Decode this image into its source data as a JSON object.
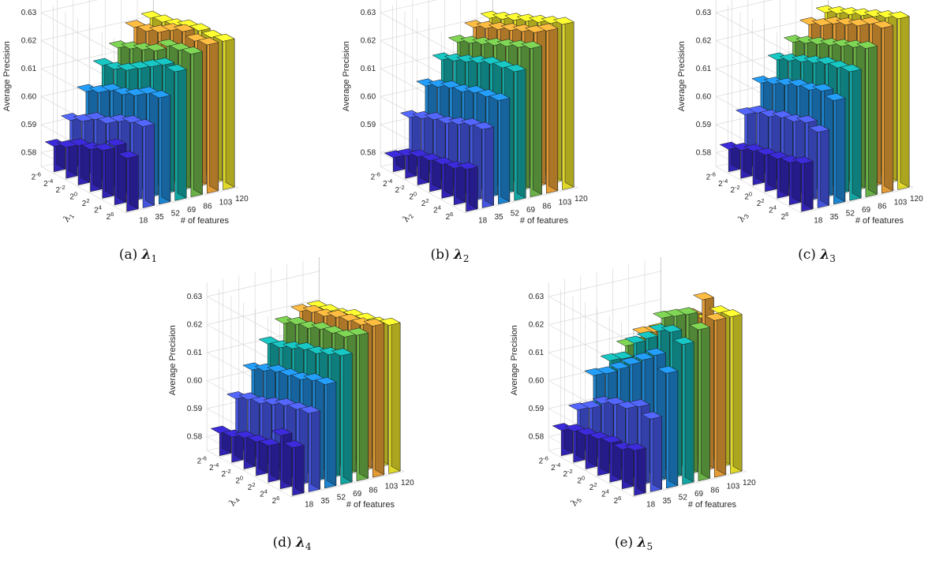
{
  "colors": [
    "#3526c4",
    "#4a5cf2",
    "#1f8ee0",
    "#15b3b0",
    "#72c04c",
    "#f6a93a",
    "#f5ec2c"
  ],
  "chart_data": [
    {
      "type": "bar3d",
      "caption": "(a) λ1",
      "xlabel": "# of features",
      "ylabel_symbol": "λ",
      "ylabel_sub": "1",
      "zlabel": "Average Precision",
      "x_categories": [
        "18",
        "35",
        "52",
        "69",
        "86",
        "103",
        "120"
      ],
      "y_categories": [
        "2-6",
        "2-4",
        "2-2",
        "20",
        "22",
        "24",
        "26"
      ],
      "y_ticks_printed": [
        [
          "2",
          "-6"
        ],
        [
          "2",
          "-4"
        ],
        [
          "2",
          "-2"
        ],
        [
          "2",
          "0"
        ],
        [
          "2",
          "2"
        ],
        [
          "2",
          "4"
        ],
        [
          "2",
          "6"
        ]
      ],
      "z_ticks": [
        "0.58",
        "0.59",
        "0.60",
        "0.61",
        "0.62",
        "0.63"
      ],
      "zlim": [
        0.575,
        0.635
      ],
      "values": [
        [
          0.594,
          0.604,
          0.613,
          0.621,
          0.626,
          0.628,
          0.628
        ],
        [
          0.596,
          0.603,
          0.612,
          0.621,
          0.625,
          0.627,
          0.627
        ],
        [
          0.592,
          0.601,
          0.609,
          0.618,
          0.624,
          0.628,
          0.627
        ],
        [
          0.59,
          0.598,
          0.607,
          0.615,
          0.62,
          0.626,
          0.626
        ],
        [
          0.589,
          0.597,
          0.606,
          0.612,
          0.618,
          0.623,
          0.624
        ],
        [
          0.586,
          0.594,
          0.603,
          0.61,
          0.616,
          0.621,
          0.623
        ],
        [
          0.584,
          0.592,
          0.601,
          0.609,
          0.614,
          0.62,
          0.622
        ]
      ]
    },
    {
      "type": "bar3d",
      "caption": "(b) λ2",
      "xlabel": "# of features",
      "ylabel_symbol": "λ",
      "ylabel_sub": "2",
      "zlabel": "Average Precision",
      "x_categories": [
        "18",
        "35",
        "52",
        "69",
        "86",
        "103",
        "120"
      ],
      "y_categories": [
        "2-6",
        "2-4",
        "2-2",
        "20",
        "22",
        "24",
        "26"
      ],
      "y_ticks_printed": [
        [
          "2",
          "-6"
        ],
        [
          "2",
          "-4"
        ],
        [
          "2",
          "-2"
        ],
        [
          "2",
          "0"
        ],
        [
          "2",
          "2"
        ],
        [
          "2",
          "4"
        ],
        [
          "2",
          "6"
        ]
      ],
      "z_ticks": [
        "0.58",
        "0.59",
        "0.60",
        "0.61",
        "0.62",
        "0.63"
      ],
      "zlim": [
        0.575,
        0.635
      ],
      "values": [
        [
          0.59,
          0.603,
          0.612,
          0.621,
          0.628,
          0.633,
          0.634
        ],
        [
          0.588,
          0.602,
          0.611,
          0.62,
          0.626,
          0.63,
          0.632
        ],
        [
          0.587,
          0.6,
          0.61,
          0.619,
          0.624,
          0.628,
          0.63
        ],
        [
          0.586,
          0.598,
          0.608,
          0.617,
          0.622,
          0.626,
          0.628
        ],
        [
          0.585,
          0.597,
          0.607,
          0.615,
          0.62,
          0.624,
          0.626
        ],
        [
          0.583,
          0.595,
          0.605,
          0.613,
          0.618,
          0.622,
          0.624
        ],
        [
          0.58,
          0.593,
          0.603,
          0.611,
          0.616,
          0.62,
          0.622
        ]
      ]
    },
    {
      "type": "bar3d",
      "caption": "(c) λ3",
      "xlabel": "# of features",
      "ylabel_symbol": "λ",
      "ylabel_sub": "3",
      "zlabel": "Average Precision",
      "x_categories": [
        "18",
        "35",
        "52",
        "69",
        "86",
        "103",
        "120"
      ],
      "y_categories": [
        "2-6",
        "2-4",
        "2-2",
        "20",
        "22",
        "24",
        "26"
      ],
      "y_ticks_printed": [
        [
          "2",
          "-6"
        ],
        [
          "2",
          "-4"
        ],
        [
          "2",
          "-2"
        ],
        [
          "2",
          "0"
        ],
        [
          "2",
          "2"
        ],
        [
          "2",
          "4"
        ],
        [
          "2",
          "6"
        ]
      ],
      "z_ticks": [
        "0.58",
        "0.59",
        "0.60",
        "0.61",
        "0.62",
        "0.63"
      ],
      "zlim": [
        0.575,
        0.635
      ],
      "values": [
        [
          0.592,
          0.602,
          0.612,
          0.621,
          0.628,
          0.634,
          0.636
        ],
        [
          0.59,
          0.603,
          0.613,
          0.62,
          0.626,
          0.633,
          0.634
        ],
        [
          0.589,
          0.601,
          0.611,
          0.619,
          0.624,
          0.63,
          0.632
        ],
        [
          0.588,
          0.6,
          0.61,
          0.617,
          0.622,
          0.628,
          0.63
        ],
        [
          0.587,
          0.598,
          0.608,
          0.615,
          0.62,
          0.626,
          0.628
        ],
        [
          0.585,
          0.597,
          0.606,
          0.613,
          0.618,
          0.623,
          0.626
        ],
        [
          0.583,
          0.594,
          0.604,
          0.611,
          0.616,
          0.621,
          0.624
        ]
      ]
    },
    {
      "type": "bar3d",
      "caption": "(d) λ4",
      "xlabel": "# of features",
      "ylabel_symbol": "λ",
      "ylabel_sub": "4",
      "zlabel": "Average Precision",
      "x_categories": [
        "18",
        "35",
        "52",
        "69",
        "86",
        "103",
        "120"
      ],
      "y_categories": [
        "2-6",
        "2-4",
        "2-2",
        "20",
        "22",
        "24",
        "26"
      ],
      "y_ticks_printed": [
        [
          "2",
          "-6"
        ],
        [
          "2",
          "-4"
        ],
        [
          "2",
          "-2"
        ],
        [
          "2",
          "0"
        ],
        [
          "2",
          "2"
        ],
        [
          "2",
          "4"
        ],
        [
          "2",
          "6"
        ]
      ],
      "z_ticks": [
        "0.58",
        "0.59",
        "0.60",
        "0.61",
        "0.62",
        "0.63"
      ],
      "zlim": [
        0.575,
        0.635
      ],
      "values": [
        [
          0.592,
          0.603,
          0.612,
          0.621,
          0.627,
          0.629,
          0.628
        ],
        [
          0.594,
          0.602,
          0.611,
          0.619,
          0.624,
          0.627,
          0.626
        ],
        [
          0.588,
          0.601,
          0.609,
          0.617,
          0.623,
          0.626,
          0.625
        ],
        [
          0.587,
          0.599,
          0.608,
          0.616,
          0.622,
          0.625,
          0.624
        ],
        [
          0.586,
          0.597,
          0.607,
          0.614,
          0.62,
          0.623,
          0.622
        ],
        [
          0.584,
          0.596,
          0.605,
          0.612,
          0.619,
          0.622,
          0.621
        ],
        [
          0.583,
          0.594,
          0.603,
          0.611,
          0.617,
          0.62,
          0.62
        ]
      ]
    },
    {
      "type": "bar3d",
      "caption": "(e) λ5",
      "xlabel": "# of features",
      "ylabel_symbol": "λ",
      "ylabel_sub": "5",
      "zlabel": "Average Precision",
      "x_categories": [
        "18",
        "35",
        "52",
        "69",
        "86",
        "103",
        "120"
      ],
      "y_categories": [
        "2-6",
        "2-4",
        "2-2",
        "20",
        "22",
        "24",
        "26"
      ],
      "y_ticks_printed": [
        [
          "2",
          "-6"
        ],
        [
          "2",
          "-4"
        ],
        [
          "2",
          "-2"
        ],
        [
          "2",
          "0"
        ],
        [
          "2",
          "2"
        ],
        [
          "2",
          "4"
        ],
        [
          "2",
          "6"
        ]
      ],
      "z_ticks": [
        "0.58",
        "0.59",
        "0.60",
        "0.61",
        "0.62",
        "0.63"
      ],
      "zlim": [
        0.575,
        0.635
      ],
      "values": [
        [
          0.591,
          0.601,
          0.616,
          0.625,
          0.629,
          0.631,
          0.631
        ],
        [
          0.589,
          0.603,
          0.62,
          0.627,
          0.632,
          0.636,
          0.63
        ],
        [
          0.589,
          0.6,
          0.616,
          0.625,
          0.629,
          0.628,
          0.625
        ],
        [
          0.588,
          0.599,
          0.612,
          0.62,
          0.626,
          0.625,
          0.62
        ],
        [
          0.587,
          0.597,
          0.608,
          0.616,
          0.616,
          0.618,
          0.616
        ],
        [
          0.586,
          0.593,
          0.604,
          0.608,
          0.612,
          0.615,
          0.614
        ],
        [
          0.584,
          0.59,
          0.601,
          0.605,
          0.609,
          0.612,
          0.612
        ]
      ]
    }
  ]
}
